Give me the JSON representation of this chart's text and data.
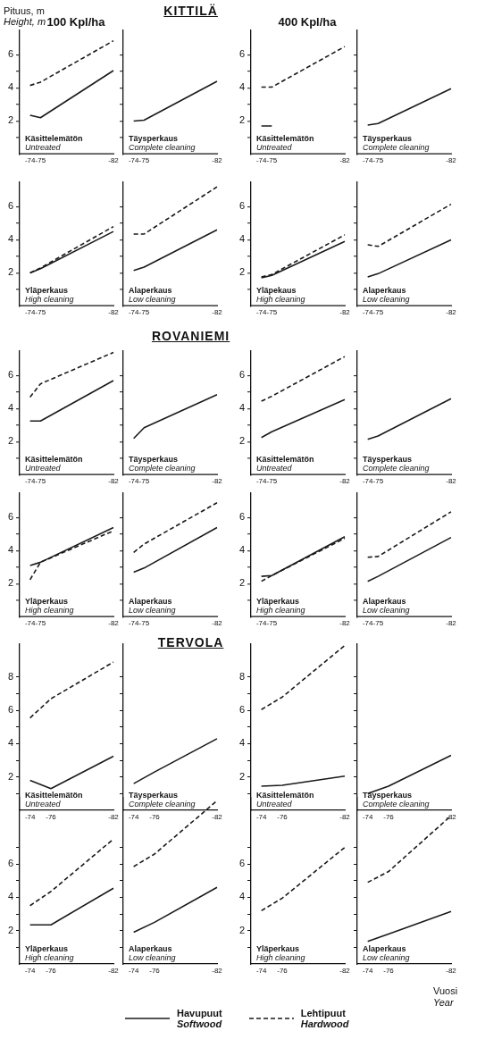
{
  "chart_data": [
    {
      "type": "line",
      "subtitle": "100 Kpl/ha",
      "ylabel": "Pituus, m\nHeight, m",
      "categories": [
        null,
        "-74",
        "-75",
        null,
        null,
        null,
        null,
        null,
        null,
        "-82"
      ],
      "ylim": [
        0,
        7.5
      ],
      "yticks": [
        {
          "value": 1,
          "label": null
        },
        2,
        {
          "value": 3,
          "label": null
        },
        4,
        {
          "value": 5,
          "label": null
        },
        6
      ],
      "annotations": [
        "Käsittelemätön",
        "Untreated"
      ],
      "series": [
        {
          "color": "#1a1a1a",
          "line_style": "solid",
          "values": [
            null,
            2.35,
            2.2,
            null,
            null,
            null,
            null,
            null,
            null,
            5.05
          ]
        },
        {
          "color": "#1a1a1a",
          "line_style": "dashed",
          "values": [
            null,
            4.15,
            4.35,
            null,
            null,
            null,
            null,
            null,
            null,
            6.85
          ]
        }
      ]
    },
    {
      "type": "line",
      "title": "KITTILÄ",
      "categories": [
        null,
        "-74",
        "-75",
        null,
        null,
        null,
        null,
        null,
        null,
        "-82"
      ],
      "ylim": [
        0,
        7.5
      ],
      "yticks": [
        {
          "value": 1,
          "label": null
        },
        2,
        {
          "value": 3,
          "label": null
        },
        4,
        {
          "value": 5,
          "label": null
        },
        6
      ],
      "tick_labels": "x",
      "annotations": [
        "Täysperkaus",
        "Complete cleaning"
      ],
      "series": [
        {
          "color": "#1a1a1a",
          "line_style": "solid",
          "values": [
            null,
            2.0,
            2.05,
            null,
            null,
            null,
            null,
            null,
            null,
            4.4
          ]
        }
      ]
    },
    {
      "type": "line",
      "subtitle": "400 Kpl/ha",
      "categories": [
        null,
        "-74",
        "-75",
        null,
        null,
        null,
        null,
        null,
        null,
        "-82"
      ],
      "ylim": [
        0,
        7.5
      ],
      "yticks": [
        {
          "value": 1,
          "label": null
        },
        2,
        {
          "value": 3,
          "label": null
        },
        4,
        {
          "value": 5,
          "label": null
        },
        6
      ],
      "annotations": [
        "Käsittelemätön",
        "Untreated"
      ],
      "series": [
        {
          "color": "#1a1a1a",
          "line_style": "solid",
          "values": [
            null,
            1.7,
            1.7,
            null,
            null,
            null,
            null,
            null,
            null,
            null
          ]
        },
        {
          "color": "#1a1a1a",
          "line_style": "dashed",
          "values": [
            null,
            4.05,
            4.05,
            null,
            null,
            null,
            null,
            null,
            null,
            6.5
          ]
        }
      ]
    },
    {
      "type": "line",
      "categories": [
        null,
        "-74",
        "-75",
        null,
        null,
        null,
        null,
        null,
        null,
        "-82"
      ],
      "ylim": [
        0,
        7.5
      ],
      "yticks": [
        {
          "value": 1,
          "label": null
        },
        2,
        {
          "value": 3,
          "label": null
        },
        4,
        {
          "value": 5,
          "label": null
        },
        6
      ],
      "tick_labels": "x",
      "annotations": [
        "Täysperkaus",
        "Complete cleaning"
      ],
      "series": [
        {
          "color": "#1a1a1a",
          "line_style": "solid",
          "values": [
            null,
            1.75,
            1.85,
            null,
            null,
            null,
            null,
            null,
            null,
            3.95
          ]
        }
      ]
    },
    {
      "type": "line",
      "categories": [
        null,
        "-74",
        "-75",
        null,
        null,
        null,
        null,
        null,
        null,
        "-82"
      ],
      "ylim": [
        0,
        7.5
      ],
      "yticks": [
        {
          "value": 1,
          "label": null
        },
        2,
        {
          "value": 3,
          "label": null
        },
        4,
        {
          "value": 5,
          "label": null
        },
        6
      ],
      "annotations": [
        "Yläperkaus",
        "High cleaning"
      ],
      "series": [
        {
          "color": "#1a1a1a",
          "line_style": "solid",
          "values": [
            null,
            2.0,
            2.25,
            null,
            null,
            null,
            null,
            null,
            null,
            4.5
          ]
        },
        {
          "color": "#1a1a1a",
          "line_style": "dashed",
          "values": [
            null,
            2.0,
            2.3,
            null,
            null,
            null,
            null,
            null,
            null,
            4.8
          ]
        }
      ]
    },
    {
      "type": "line",
      "categories": [
        null,
        "-74",
        "-75",
        null,
        null,
        null,
        null,
        null,
        null,
        "-82"
      ],
      "ylim": [
        0,
        7.5
      ],
      "yticks": [
        {
          "value": 1,
          "label": null
        },
        2,
        {
          "value": 3,
          "label": null
        },
        4,
        {
          "value": 5,
          "label": null
        },
        6
      ],
      "tick_labels": "x",
      "annotations": [
        "Alaperkaus",
        "Low cleaning"
      ],
      "series": [
        {
          "color": "#1a1a1a",
          "line_style": "solid",
          "values": [
            null,
            2.15,
            2.35,
            null,
            null,
            null,
            null,
            null,
            null,
            4.6
          ]
        },
        {
          "color": "#1a1a1a",
          "line_style": "dashed",
          "values": [
            null,
            4.35,
            4.35,
            null,
            null,
            null,
            null,
            null,
            null,
            7.2
          ]
        }
      ]
    },
    {
      "type": "line",
      "categories": [
        null,
        "-74",
        "-75",
        null,
        null,
        null,
        null,
        null,
        null,
        "-82"
      ],
      "ylim": [
        0,
        7.5
      ],
      "yticks": [
        {
          "value": 1,
          "label": null
        },
        2,
        {
          "value": 3,
          "label": null
        },
        4,
        {
          "value": 5,
          "label": null
        },
        6
      ],
      "annotations": [
        "Yläpekaus",
        "High cleaning"
      ],
      "series": [
        {
          "color": "#1a1a1a",
          "line_style": "solid",
          "values": [
            null,
            1.7,
            1.85,
            null,
            null,
            null,
            null,
            null,
            null,
            3.9
          ]
        },
        {
          "color": "#1a1a1a",
          "line_style": "dashed",
          "values": [
            null,
            1.75,
            1.9,
            null,
            null,
            null,
            null,
            null,
            null,
            4.3
          ]
        }
      ]
    },
    {
      "type": "line",
      "categories": [
        null,
        "-74",
        "-75",
        null,
        null,
        null,
        null,
        null,
        null,
        "-82"
      ],
      "ylim": [
        0,
        7.5
      ],
      "yticks": [
        {
          "value": 1,
          "label": null
        },
        2,
        {
          "value": 3,
          "label": null
        },
        4,
        {
          "value": 5,
          "label": null
        },
        6
      ],
      "tick_labels": "x",
      "annotations": [
        "Alaperkaus",
        "Low cleaning"
      ],
      "series": [
        {
          "color": "#1a1a1a",
          "line_style": "solid",
          "values": [
            null,
            1.75,
            1.95,
            null,
            null,
            null,
            null,
            null,
            null,
            4.0
          ]
        },
        {
          "color": "#1a1a1a",
          "line_style": "dashed",
          "values": [
            null,
            3.7,
            3.6,
            null,
            null,
            null,
            null,
            null,
            null,
            6.15
          ]
        }
      ]
    },
    {
      "type": "line",
      "categories": [
        null,
        "-74",
        "-75",
        null,
        null,
        null,
        null,
        null,
        null,
        "-82"
      ],
      "ylim": [
        0,
        7.5
      ],
      "yticks": [
        {
          "value": 1,
          "label": null
        },
        2,
        {
          "value": 3,
          "label": null
        },
        4,
        {
          "value": 5,
          "label": null
        },
        6
      ],
      "annotations": [
        "Käsittelemätön",
        "Untreated"
      ],
      "series": [
        {
          "color": "#1a1a1a",
          "line_style": "solid",
          "values": [
            null,
            3.25,
            3.25,
            null,
            null,
            null,
            null,
            null,
            null,
            5.7
          ]
        },
        {
          "color": "#1a1a1a",
          "line_style": "dashed",
          "values": [
            null,
            4.7,
            5.5,
            null,
            null,
            null,
            null,
            null,
            null,
            7.4
          ]
        }
      ]
    },
    {
      "type": "line",
      "title": "ROVANIEMI",
      "categories": [
        null,
        "-74",
        "-75",
        null,
        null,
        null,
        null,
        null,
        null,
        "-82"
      ],
      "ylim": [
        0,
        7.5
      ],
      "yticks": [
        {
          "value": 1,
          "label": null
        },
        2,
        {
          "value": 3,
          "label": null
        },
        4,
        {
          "value": 5,
          "label": null
        },
        6
      ],
      "tick_labels": "x",
      "annotations": [
        "Täysperkaus",
        "Complete cleaning"
      ],
      "series": [
        {
          "color": "#1a1a1a",
          "line_style": "solid",
          "values": [
            null,
            2.2,
            2.85,
            null,
            null,
            null,
            null,
            null,
            null,
            4.85
          ]
        }
      ]
    },
    {
      "type": "line",
      "categories": [
        null,
        "-74",
        "-75",
        null,
        null,
        null,
        null,
        null,
        null,
        "-82"
      ],
      "ylim": [
        0,
        7.5
      ],
      "yticks": [
        {
          "value": 1,
          "label": null
        },
        2,
        {
          "value": 3,
          "label": null
        },
        4,
        {
          "value": 5,
          "label": null
        },
        6
      ],
      "annotations": [
        "Käsittelemätön",
        "Untreated"
      ],
      "series": [
        {
          "color": "#1a1a1a",
          "line_style": "solid",
          "values": [
            null,
            2.25,
            2.6,
            null,
            null,
            null,
            null,
            null,
            null,
            4.55
          ]
        },
        {
          "color": "#1a1a1a",
          "line_style": "dashed",
          "values": [
            null,
            4.45,
            4.75,
            null,
            null,
            null,
            null,
            null,
            null,
            7.15
          ]
        }
      ]
    },
    {
      "type": "line",
      "categories": [
        null,
        "-74",
        "-75",
        null,
        null,
        null,
        null,
        null,
        null,
        "-82"
      ],
      "ylim": [
        0,
        7.5
      ],
      "yticks": [
        {
          "value": 1,
          "label": null
        },
        2,
        {
          "value": 3,
          "label": null
        },
        4,
        {
          "value": 5,
          "label": null
        },
        6
      ],
      "tick_labels": "x",
      "annotations": [
        "Täysperkaus",
        "Complete cleaning"
      ],
      "series": [
        {
          "color": "#1a1a1a",
          "line_style": "solid",
          "values": [
            null,
            2.15,
            2.35,
            null,
            null,
            null,
            null,
            null,
            null,
            4.6
          ]
        }
      ]
    },
    {
      "type": "line",
      "categories": [
        null,
        "-74",
        "-75",
        null,
        null,
        null,
        null,
        null,
        null,
        "-82"
      ],
      "ylim": [
        0,
        7.5
      ],
      "yticks": [
        {
          "value": 1,
          "label": null
        },
        2,
        {
          "value": 3,
          "label": null
        },
        4,
        {
          "value": 5,
          "label": null
        },
        6
      ],
      "annotations": [
        "Yläperkaus",
        "High cleaning"
      ],
      "series": [
        {
          "color": "#1a1a1a",
          "line_style": "solid",
          "values": [
            null,
            3.1,
            3.3,
            null,
            null,
            null,
            null,
            null,
            null,
            5.4
          ]
        },
        {
          "color": "#1a1a1a",
          "line_style": "dashed",
          "values": [
            null,
            2.25,
            3.3,
            null,
            null,
            null,
            null,
            null,
            null,
            5.2
          ]
        }
      ]
    },
    {
      "type": "line",
      "categories": [
        null,
        "-74",
        "-75",
        null,
        null,
        null,
        null,
        null,
        null,
        "-82"
      ],
      "ylim": [
        0,
        7.5
      ],
      "yticks": [
        {
          "value": 1,
          "label": null
        },
        2,
        {
          "value": 3,
          "label": null
        },
        4,
        {
          "value": 5,
          "label": null
        },
        6
      ],
      "tick_labels": "x",
      "annotations": [
        "Alaperkaus",
        "Low cleaning"
      ],
      "series": [
        {
          "color": "#1a1a1a",
          "line_style": "solid",
          "values": [
            null,
            2.7,
            2.95,
            null,
            null,
            null,
            null,
            null,
            null,
            5.4
          ]
        },
        {
          "color": "#1a1a1a",
          "line_style": "dashed",
          "values": [
            null,
            3.9,
            4.4,
            null,
            null,
            null,
            null,
            null,
            null,
            6.9
          ]
        }
      ]
    },
    {
      "type": "line",
      "categories": [
        null,
        "-74",
        "-75",
        null,
        null,
        null,
        null,
        null,
        null,
        "-82"
      ],
      "ylim": [
        0,
        7.5
      ],
      "yticks": [
        {
          "value": 1,
          "label": null
        },
        2,
        {
          "value": 3,
          "label": null
        },
        4,
        {
          "value": 5,
          "label": null
        },
        6
      ],
      "annotations": [
        "Yläperkaus",
        "High cleaning"
      ],
      "series": [
        {
          "color": "#1a1a1a",
          "line_style": "solid",
          "values": [
            null,
            2.45,
            2.5,
            null,
            null,
            null,
            null,
            null,
            null,
            4.85
          ]
        },
        {
          "color": "#1a1a1a",
          "line_style": "dashed",
          "values": [
            null,
            2.15,
            2.5,
            null,
            null,
            null,
            null,
            null,
            null,
            4.75
          ]
        }
      ]
    },
    {
      "type": "line",
      "categories": [
        null,
        "-74",
        "-75",
        null,
        null,
        null,
        null,
        null,
        null,
        "-82"
      ],
      "ylim": [
        0,
        7.5
      ],
      "yticks": [
        {
          "value": 1,
          "label": null
        },
        2,
        {
          "value": 3,
          "label": null
        },
        4,
        {
          "value": 5,
          "label": null
        },
        6
      ],
      "tick_labels": "x",
      "annotations": [
        "Alaperkaus",
        "Low cleaning"
      ],
      "series": [
        {
          "color": "#1a1a1a",
          "line_style": "solid",
          "values": [
            null,
            2.15,
            2.45,
            null,
            null,
            null,
            null,
            null,
            null,
            4.8
          ]
        },
        {
          "color": "#1a1a1a",
          "line_style": "dashed",
          "values": [
            null,
            3.6,
            3.65,
            null,
            null,
            null,
            null,
            null,
            null,
            6.35
          ]
        }
      ]
    },
    {
      "type": "line",
      "categories": [
        null,
        "-74",
        null,
        "-76",
        null,
        null,
        null,
        null,
        null,
        "-82"
      ],
      "ylim": [
        0,
        10
      ],
      "yticks": [
        {
          "value": 1,
          "label": null
        },
        2,
        {
          "value": 3,
          "label": null
        },
        4,
        {
          "value": 5,
          "label": null
        },
        6,
        {
          "value": 7,
          "label": null
        },
        8
      ],
      "annotations": [
        "Käsittelemätön",
        "Untreated"
      ],
      "series": [
        {
          "color": "#1a1a1a",
          "line_style": "solid",
          "values": [
            null,
            1.8,
            null,
            1.3,
            null,
            null,
            null,
            null,
            null,
            3.25
          ]
        },
        {
          "color": "#1a1a1a",
          "line_style": "dashed",
          "values": [
            null,
            5.55,
            null,
            6.7,
            null,
            null,
            null,
            null,
            null,
            8.9
          ]
        }
      ]
    },
    {
      "type": "line",
      "title": "TERVOLA",
      "categories": [
        null,
        "-74",
        null,
        "-76",
        null,
        null,
        null,
        null,
        null,
        "-82"
      ],
      "ylim": [
        0,
        10
      ],
      "yticks": [
        {
          "value": 1,
          "label": null
        },
        2,
        {
          "value": 3,
          "label": null
        },
        4,
        {
          "value": 5,
          "label": null
        },
        6,
        {
          "value": 7,
          "label": null
        },
        8
      ],
      "tick_labels": "x",
      "annotations": [
        "Täysperkaus",
        "Complete cleaning"
      ],
      "series": [
        {
          "color": "#1a1a1a",
          "line_style": "solid",
          "values": [
            null,
            1.6,
            null,
            2.3,
            null,
            null,
            null,
            null,
            null,
            4.3
          ]
        }
      ]
    },
    {
      "type": "line",
      "categories": [
        null,
        "-74",
        null,
        "-76",
        null,
        null,
        null,
        null,
        null,
        "-82"
      ],
      "ylim": [
        0,
        10
      ],
      "yticks": [
        {
          "value": 1,
          "label": null
        },
        2,
        {
          "value": 3,
          "label": null
        },
        4,
        {
          "value": 5,
          "label": null
        },
        6,
        {
          "value": 7,
          "label": null
        },
        8
      ],
      "annotations": [
        "Käsittelemätön",
        "Untreated"
      ],
      "series": [
        {
          "color": "#1a1a1a",
          "line_style": "solid",
          "values": [
            null,
            1.45,
            null,
            1.5,
            null,
            null,
            null,
            null,
            null,
            2.05
          ]
        },
        {
          "color": "#1a1a1a",
          "line_style": "dashed",
          "values": [
            null,
            6.05,
            null,
            6.8,
            null,
            null,
            null,
            null,
            null,
            9.9
          ]
        }
      ]
    },
    {
      "type": "line",
      "categories": [
        null,
        "-74",
        null,
        "-76",
        null,
        null,
        null,
        null,
        null,
        "-82"
      ],
      "ylim": [
        0,
        10
      ],
      "yticks": [
        {
          "value": 1,
          "label": null
        },
        2,
        {
          "value": 3,
          "label": null
        },
        4,
        {
          "value": 5,
          "label": null
        },
        6,
        {
          "value": 7,
          "label": null
        },
        8
      ],
      "tick_labels": "x",
      "annotations": [
        "Täysperkaus",
        "Complete cleaning"
      ],
      "series": [
        {
          "color": "#1a1a1a",
          "line_style": "solid",
          "values": [
            null,
            1.0,
            null,
            1.45,
            null,
            null,
            null,
            null,
            null,
            3.3
          ]
        }
      ]
    },
    {
      "type": "line",
      "categories": [
        null,
        "-74",
        null,
        "-76",
        null,
        null,
        null,
        null,
        null,
        "-82"
      ],
      "ylim": [
        0,
        10
      ],
      "yticks": [
        {
          "value": 1,
          "label": null
        },
        2,
        {
          "value": 3,
          "label": null
        },
        4,
        {
          "value": 5,
          "label": null
        },
        6,
        {
          "value": 7,
          "label": null
        }
      ],
      "annotations": [
        "Yläperkaus",
        "High cleaning"
      ],
      "series": [
        {
          "color": "#1a1a1a",
          "line_style": "solid",
          "values": [
            null,
            2.35,
            null,
            2.35,
            null,
            null,
            null,
            null,
            null,
            4.55
          ]
        },
        {
          "color": "#1a1a1a",
          "line_style": "dashed",
          "values": [
            null,
            3.5,
            null,
            4.35,
            null,
            null,
            null,
            null,
            null,
            7.5
          ]
        }
      ]
    },
    {
      "type": "line",
      "categories": [
        null,
        "-74",
        null,
        "-76",
        null,
        null,
        null,
        null,
        null,
        "-82"
      ],
      "ylim": [
        0,
        10
      ],
      "yticks": [
        {
          "value": 1,
          "label": null
        },
        2,
        {
          "value": 3,
          "label": null
        },
        4,
        {
          "value": 5,
          "label": null
        },
        6,
        {
          "value": 7,
          "label": null
        }
      ],
      "tick_labels": "x",
      "annotations": [
        "Alaperkaus",
        "Low cleaning"
      ],
      "series": [
        {
          "color": "#1a1a1a",
          "line_style": "solid",
          "values": [
            null,
            1.9,
            null,
            2.5,
            null,
            null,
            null,
            null,
            null,
            4.6
          ]
        },
        {
          "color": "#1a1a1a",
          "line_style": "dashed",
          "values": [
            null,
            5.85,
            null,
            6.6,
            null,
            null,
            null,
            null,
            null,
            9.8
          ]
        }
      ]
    },
    {
      "type": "line",
      "categories": [
        null,
        "-74",
        null,
        "-76",
        null,
        null,
        null,
        null,
        null,
        "-82"
      ],
      "ylim": [
        0,
        10
      ],
      "yticks": [
        {
          "value": 1,
          "label": null
        },
        2,
        {
          "value": 3,
          "label": null
        },
        4,
        {
          "value": 5,
          "label": null
        },
        6,
        {
          "value": 7,
          "label": null
        }
      ],
      "annotations": [
        "Yläperkaus",
        "High cleaning"
      ],
      "series": [
        {
          "color": "#1a1a1a",
          "line_style": "dashed",
          "values": [
            null,
            3.2,
            null,
            3.95,
            null,
            null,
            null,
            null,
            null,
            7.0
          ]
        }
      ]
    },
    {
      "type": "line",
      "xlabel": "Vuosi\nYear",
      "legend": "bottom",
      "categories": [
        null,
        "-74",
        null,
        "-76",
        null,
        null,
        null,
        null,
        null,
        "-82"
      ],
      "ylim": [
        0,
        10
      ],
      "yticks": [
        {
          "value": 1,
          "label": null
        },
        2,
        {
          "value": 3,
          "label": null
        },
        4,
        {
          "value": 5,
          "label": null
        },
        6,
        {
          "value": 7,
          "label": null
        }
      ],
      "tick_labels": "x",
      "annotations": [
        "Alaperkaus",
        "Low cleaning"
      ],
      "series": [
        {
          "name": "Havupuut\nSoftwood",
          "color": "#1a1a1a",
          "line_style": "solid",
          "values": [
            null,
            1.35,
            null,
            1.8,
            null,
            null,
            null,
            null,
            null,
            3.15
          ]
        },
        {
          "name": "Lehtipuut\nHardwood",
          "color": "#1a1a1a",
          "line_style": "dashed",
          "values": [
            null,
            4.9,
            null,
            5.55,
            null,
            null,
            null,
            null,
            null,
            8.9
          ]
        }
      ]
    }
  ]
}
